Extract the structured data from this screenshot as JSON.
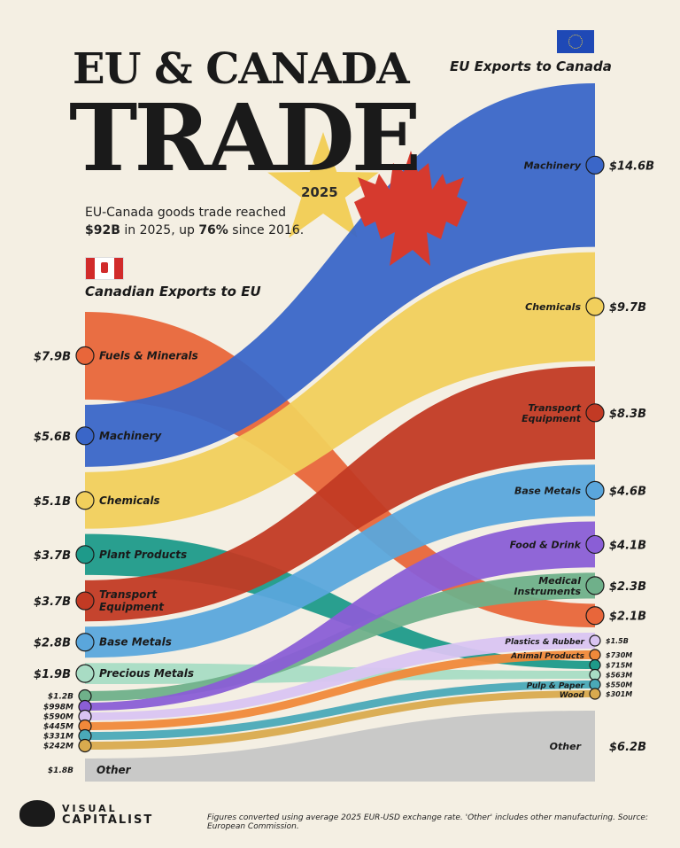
{
  "header": {
    "title_line1": "EU & CANADA",
    "title_line2": "TRADE",
    "year": "2025",
    "subtitle_pre": "EU-Canada goods trade reached ",
    "subtitle_total": "$92B",
    "subtitle_mid": " in 2025, up ",
    "subtitle_pct": "76%",
    "subtitle_post": " since 2016."
  },
  "footer": {
    "note": "Figures converted using average 2025 EUR-USD exchange rate. 'Other' includes other manufacturing. Source: European Commission.",
    "logo_line1": "VISUAL",
    "logo_line2": "CAPITALIST"
  },
  "chart_data": {
    "type": "sankey",
    "left_title": "Canadian Exports to EU",
    "right_title": "EU Exports to Canada",
    "left": [
      {
        "label": "Fuels & Minerals",
        "value_text": "$7.9B",
        "value": 7.9,
        "color": "#e8663a",
        "icon": "fuel-icon"
      },
      {
        "label": "Machinery",
        "value_text": "$5.6B",
        "value": 5.6,
        "color": "#3a66c8",
        "icon": "gear-icon"
      },
      {
        "label": "Chemicals",
        "value_text": "$5.1B",
        "value": 5.1,
        "color": "#f1cf5c",
        "icon": "flask-icon"
      },
      {
        "label": "Plant Products",
        "value_text": "$3.7B",
        "value": 3.7,
        "color": "#1e9a8a",
        "icon": "leaf-icon"
      },
      {
        "label": "Transport Equipment",
        "value_text": "$3.7B",
        "value": 3.7,
        "color": "#c23a24",
        "icon": "truck-icon"
      },
      {
        "label": "Base Metals",
        "value_text": "$2.8B",
        "value": 2.8,
        "color": "#5aa6dc",
        "icon": "ingot-icon"
      },
      {
        "label": "Precious Metals",
        "value_text": "$1.9B",
        "value": 1.9,
        "color": "#a8dcc4",
        "icon": "gem-icon"
      },
      {
        "label": "",
        "value_text": "$1.2B",
        "value": 1.2,
        "color": "#6fb08a",
        "icon": "stethoscope-icon"
      },
      {
        "label": "",
        "value_text": "$998M",
        "value": 0.998,
        "color": "#8a5ed6",
        "icon": "food-icon"
      },
      {
        "label": "",
        "value_text": "$590M",
        "value": 0.59,
        "color": "#d9c4f2",
        "icon": "bottle-icon"
      },
      {
        "label": "",
        "value_text": "$445M",
        "value": 0.445,
        "color": "#f0893a",
        "icon": "animal-icon"
      },
      {
        "label": "",
        "value_text": "$331M",
        "value": 0.331,
        "color": "#4aa9b8",
        "icon": "paper-icon"
      },
      {
        "label": "",
        "value_text": "$242M",
        "value": 0.242,
        "color": "#d9aa4e",
        "icon": "wood-icon"
      },
      {
        "label": "Other",
        "value_text": "$1.8B",
        "value": 1.8,
        "color": "#c6c6c6",
        "icon": ""
      }
    ],
    "right": [
      {
        "label": "Machinery",
        "value_text": "$14.6B",
        "value": 14.6,
        "color": "#3a66c8",
        "icon": "gear-icon"
      },
      {
        "label": "Chemicals",
        "value_text": "$9.7B",
        "value": 9.7,
        "color": "#f1cf5c",
        "icon": "flask-icon"
      },
      {
        "label": "Transport Equipment",
        "value_text": "$8.3B",
        "value": 8.3,
        "color": "#c23a24",
        "icon": "truck-icon"
      },
      {
        "label": "Base Metals",
        "value_text": "$4.6B",
        "value": 4.6,
        "color": "#5aa6dc",
        "icon": "ingot-icon"
      },
      {
        "label": "Food & Drink",
        "value_text": "$4.1B",
        "value": 4.1,
        "color": "#8a5ed6",
        "icon": "food-icon"
      },
      {
        "label": "Medical Instruments",
        "value_text": "$2.3B",
        "value": 2.3,
        "color": "#6fb08a",
        "icon": "stethoscope-icon"
      },
      {
        "label": "",
        "value_text": "$2.1B",
        "value": 2.1,
        "color": "#e8663a",
        "icon": "fuel-icon"
      },
      {
        "label": "Plastics & Rubber",
        "value_text": "$1.5B",
        "value": 1.5,
        "color": "#d9c4f2",
        "icon": "bottle-icon"
      },
      {
        "label": "Animal Products",
        "value_text": "$730M",
        "value": 0.73,
        "color": "#f0893a",
        "icon": "animal-icon"
      },
      {
        "label": "",
        "value_text": "$715M",
        "value": 0.715,
        "color": "#1e9a8a",
        "icon": "leaf-icon"
      },
      {
        "label": "",
        "value_text": "$563M",
        "value": 0.563,
        "color": "#a8dcc4",
        "icon": "gem-icon"
      },
      {
        "label": "Pulp & Paper",
        "value_text": "$550M",
        "value": 0.55,
        "color": "#4aa9b8",
        "icon": "paper-icon"
      },
      {
        "label": "Wood",
        "value_text": "$301M",
        "value": 0.301,
        "color": "#d9aa4e",
        "icon": "wood-icon"
      },
      {
        "label": "Other",
        "value_text": "$6.2B",
        "value": 6.2,
        "color": "#c6c6c6",
        "icon": ""
      }
    ]
  }
}
